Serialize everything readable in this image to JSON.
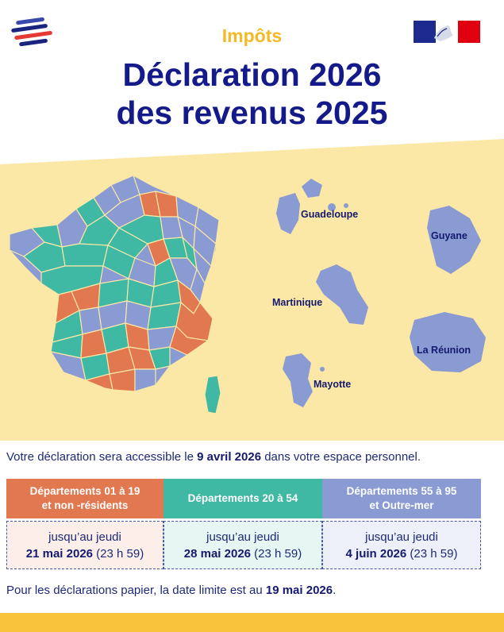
{
  "header": {
    "kicker": "Impôts",
    "title_line1": "Déclaration 2026",
    "title_line2": "des revenus 2025"
  },
  "map": {
    "labels": {
      "guadeloupe": "Guadeloupe",
      "guyane": "Guyane",
      "martinique": "Martinique",
      "reunion": "La Réunion",
      "mayotte": "Mayotte"
    },
    "colors": {
      "band": "#fbe7a6",
      "orange": "#e2784f",
      "teal": "#3fb8a4",
      "blue": "#8a9ad2"
    }
  },
  "intro": {
    "before": "Votre déclaration sera accessible le ",
    "date": "9 avril 2026",
    "after": " dans votre espace personnel."
  },
  "columns": [
    {
      "head_line1": "Départements 01 à 19",
      "head_line2": "et non -résidents",
      "line1": "jusqu’au jeudi",
      "date": "21 mai 2026",
      "time": " (23 h 59)",
      "color": "#e2784f",
      "box_bg": "#fcefe9"
    },
    {
      "head_line1": "Départements 20 à 54",
      "head_line2": "",
      "line1": "jusqu’au jeudi",
      "date": "28 mai 2026",
      "time": " (23 h 59)",
      "color": "#3fb8a4",
      "box_bg": "#e6f6f3"
    },
    {
      "head_line1": "Départements 55 à 95",
      "head_line2": "et Outre-mer",
      "line1": "jusqu’au jeudi",
      "date": "4 juin 2026",
      "time": " (23 h 59)",
      "color": "#8a9ad2",
      "box_bg": "#eef0f9"
    }
  ],
  "footnote": {
    "before": "Pour les déclarations papier, la date limite est au ",
    "date": "19 mai 2026",
    "after": "."
  }
}
